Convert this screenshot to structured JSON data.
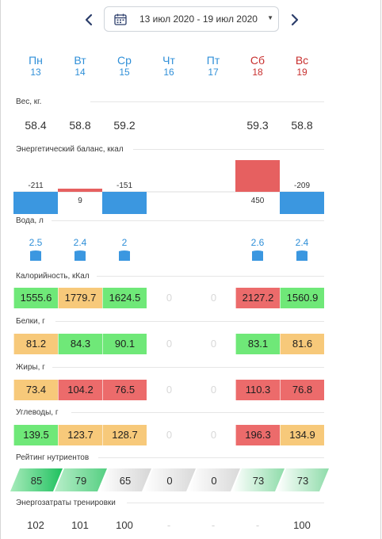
{
  "date_range": "13 июл 2020 - 19 июл 2020",
  "days": [
    {
      "name": "Пн",
      "date": "13"
    },
    {
      "name": "Вт",
      "date": "14"
    },
    {
      "name": "Ср",
      "date": "15"
    },
    {
      "name": "Чт",
      "date": "16"
    },
    {
      "name": "Пт",
      "date": "17"
    },
    {
      "name": "Сб",
      "date": "18"
    },
    {
      "name": "Вс",
      "date": "19"
    }
  ],
  "colors": {
    "weekday": "#2f8fd8",
    "weekend": "#c8302f",
    "good": "#6fe878",
    "warn": "#f7c97a",
    "bad": "#ec6b6b",
    "bar_blue": "#3b97e0",
    "bar_red": "#e66060"
  },
  "sections": {
    "weight": "Вес, кг.",
    "energy": "Энергетический баланс, ккал",
    "water": "Вода, л",
    "calories": "Калорийность, кКал",
    "protein": "Белки, г",
    "fat": "Жиры, г",
    "carbs": "Углеводы, г",
    "rating": "Рейтинг нутриентов",
    "training": "Энергозатраты тренировки"
  },
  "weight": [
    "58.4",
    "58.8",
    "59.2",
    "",
    "",
    "59.3",
    "58.8"
  ],
  "energy": [
    -211,
    9,
    -151,
    null,
    null,
    450,
    -209
  ],
  "energy_labels": [
    "-211",
    "9",
    "-151",
    "",
    "",
    "450",
    "-209"
  ],
  "water": [
    "2.5",
    "2.4",
    "2",
    "",
    "",
    "2.6",
    "2.4"
  ],
  "calories": [
    {
      "v": "1555.6",
      "s": "good"
    },
    {
      "v": "1779.7",
      "s": "warn"
    },
    {
      "v": "1624.5",
      "s": "good"
    },
    {
      "v": "0",
      "s": "empty"
    },
    {
      "v": "0",
      "s": "empty"
    },
    {
      "v": "2127.2",
      "s": "bad"
    },
    {
      "v": "1560.9",
      "s": "good"
    }
  ],
  "protein": [
    {
      "v": "81.2",
      "s": "warn"
    },
    {
      "v": "84.3",
      "s": "good"
    },
    {
      "v": "90.1",
      "s": "good"
    },
    {
      "v": "0",
      "s": "empty"
    },
    {
      "v": "0",
      "s": "empty"
    },
    {
      "v": "83.1",
      "s": "good"
    },
    {
      "v": "81.6",
      "s": "warn"
    }
  ],
  "fat": [
    {
      "v": "73.4",
      "s": "warn"
    },
    {
      "v": "104.2",
      "s": "bad"
    },
    {
      "v": "76.5",
      "s": "bad"
    },
    {
      "v": "0",
      "s": "empty"
    },
    {
      "v": "0",
      "s": "empty"
    },
    {
      "v": "110.3",
      "s": "bad"
    },
    {
      "v": "76.8",
      "s": "bad"
    }
  ],
  "carbs": [
    {
      "v": "139.5",
      "s": "good"
    },
    {
      "v": "123.7",
      "s": "warn"
    },
    {
      "v": "128.7",
      "s": "warn"
    },
    {
      "v": "0",
      "s": "empty"
    },
    {
      "v": "0",
      "s": "empty"
    },
    {
      "v": "196.3",
      "s": "bad"
    },
    {
      "v": "134.9",
      "s": "warn"
    }
  ],
  "rating": [
    {
      "v": "85",
      "c1": "#a8ebbb",
      "c2": "#1fc15f"
    },
    {
      "v": "79",
      "c1": "#b8eec9",
      "c2": "#55cf82"
    },
    {
      "v": "65",
      "c1": "#ffffff",
      "c2": "#d6d6d6"
    },
    {
      "v": "0",
      "c1": "#ffffff",
      "c2": "#d9d9d9"
    },
    {
      "v": "0",
      "c1": "#ffffff",
      "c2": "#d9d9d9"
    },
    {
      "v": "73",
      "c1": "#ffffff",
      "c2": "#8fdcaa"
    },
    {
      "v": "73",
      "c1": "#ffffff",
      "c2": "#8fdcaa"
    }
  ],
  "training": [
    "102",
    "101",
    "100",
    "-",
    "-",
    "-",
    "100"
  ]
}
